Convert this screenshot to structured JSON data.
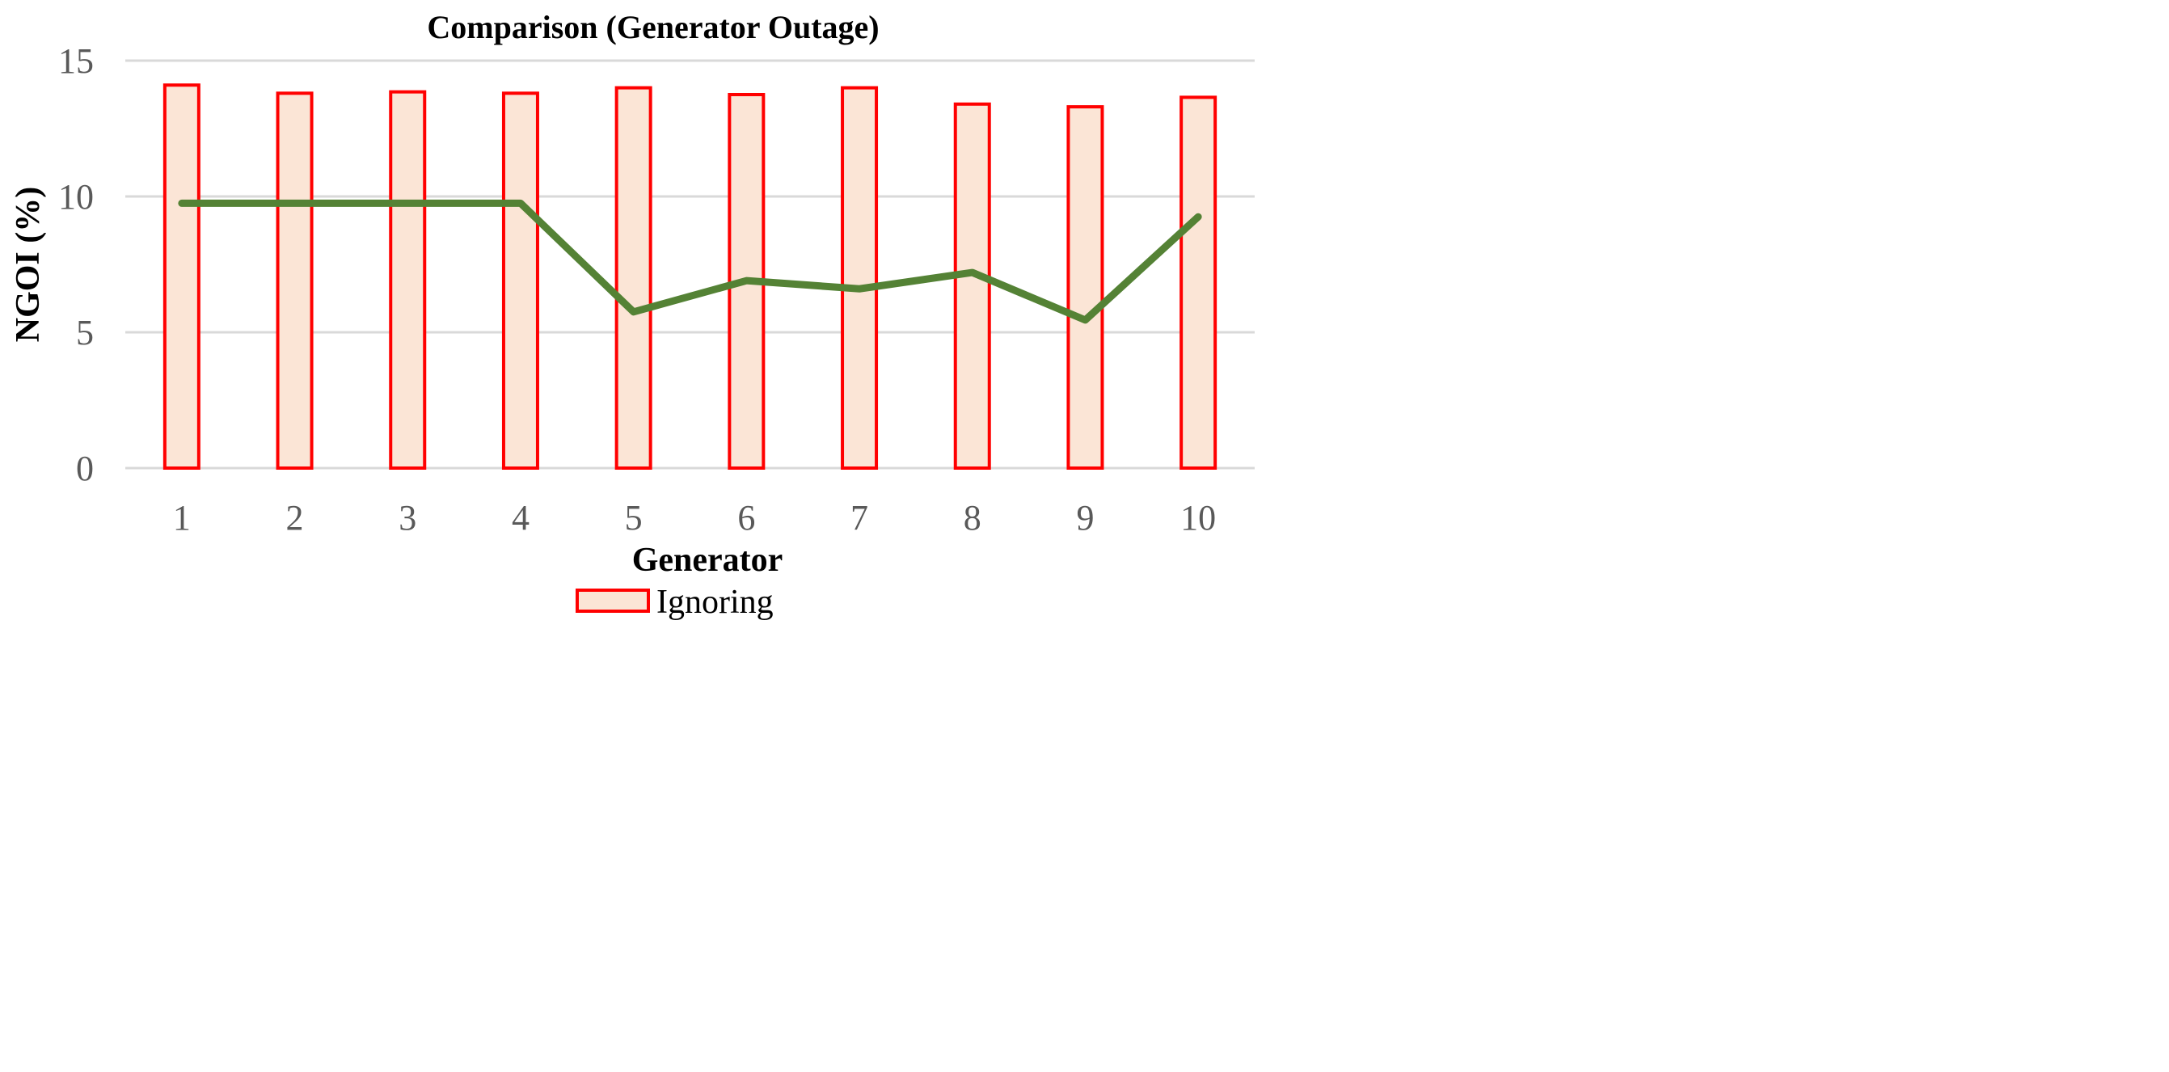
{
  "chart_data": {
    "type": "bar",
    "title": "Comparison (Generator Outage)",
    "xlabel": "Generator",
    "ylabel": "NGOI (%)",
    "categories": [
      "1",
      "2",
      "3",
      "4",
      "5",
      "6",
      "7",
      "8",
      "9",
      "10"
    ],
    "ylim": [
      0,
      15
    ],
    "yticks": [
      "0",
      "5",
      "10",
      "15"
    ],
    "grid": true,
    "legend_position": "bottom",
    "series": [
      {
        "name": "Ignoring",
        "type": "bar",
        "values": [
          14.1,
          13.8,
          13.85,
          13.8,
          14.0,
          13.75,
          14.0,
          13.4,
          13.3,
          13.65
        ],
        "fill": "#FBE5D6",
        "stroke": "#FF0000"
      },
      {
        "type": "line",
        "values": [
          9.75,
          9.75,
          9.75,
          9.75,
          5.75,
          6.9,
          6.6,
          7.2,
          5.45,
          9.25
        ],
        "stroke": "#548235"
      }
    ],
    "colors": {
      "gridline": "#D9D9D9",
      "tick_text": "#595959"
    }
  }
}
